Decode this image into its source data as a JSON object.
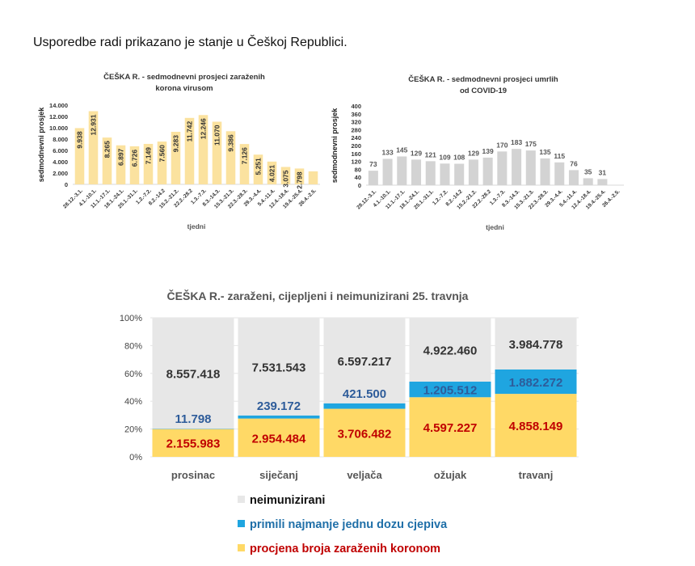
{
  "intro_text": "Usporedbe radi prikazano je stanje u Češkoj Republici.",
  "chart_data": [
    {
      "id": "cases",
      "type": "bar",
      "title_line1": "ČEŠKA R. - sedmodnevni prosjeci zaraženih",
      "title_line2": "korona virusom",
      "xlabel": "tjedni",
      "ylabel": "sedmodnevni prosjek",
      "ylim": [
        0,
        14000
      ],
      "yticks": [
        0,
        2000,
        4000,
        6000,
        8000,
        10000,
        12000,
        14000
      ],
      "ytick_labels": [
        "0",
        "2.000",
        "4.000",
        "6.000",
        "8.000",
        "10.000",
        "12.000",
        "14.000"
      ],
      "bar_color": "#FBE29F",
      "categories": [
        "28.12.-3.1.",
        "4.1.-10.1.",
        "11.1.-17.1.",
        "18.1.-24.1.",
        "25.1.-31.1.",
        "1.2.-7.2.",
        "8.2.-14.2",
        "15.2.-21.2.",
        "22.2.-28.2",
        "1.3.-7.3.",
        "8.3.-14.3.",
        "15.3.-21.3.",
        "22.3.-28.3.",
        "29.3.-4.4.",
        "5.4.-11.4.",
        "12.4.-18.4.",
        "19.4.-25.4.",
        "26.4.-2.5."
      ],
      "values": [
        9938,
        12931,
        8265,
        6897,
        6726,
        7149,
        7560,
        9283,
        11742,
        12246,
        11070,
        9386,
        7126,
        5251,
        4021,
        3075,
        2798,
        2300
      ],
      "data_labels": [
        "9.938",
        "12.931",
        "8.265",
        "6.897",
        "6.726",
        "7.149",
        "7.560",
        "9.283",
        "11.742",
        "12.246",
        "11.070",
        "9.386",
        "7.126",
        "5.251",
        "4.021",
        "3.075",
        "2.798",
        ""
      ],
      "grid": false
    },
    {
      "id": "deaths",
      "type": "bar",
      "title_line1": "ČEŠKA R. - sedmodnevni prosjeci umrlih",
      "title_line2": "od COVID-19",
      "xlabel": "tjedni",
      "ylabel": "sedmodnevni prosjek",
      "ylim": [
        0,
        400
      ],
      "yticks": [
        0,
        40,
        80,
        120,
        160,
        200,
        240,
        280,
        320,
        360,
        400
      ],
      "ytick_labels": [
        "0",
        "40",
        "80",
        "120",
        "160",
        "200",
        "240",
        "280",
        "320",
        "360",
        "400"
      ],
      "bar_color": "#D3D3D3",
      "categories": [
        "28.12.-3.1.",
        "4.1.-10.1.",
        "11.1.-17.1.",
        "18.1.-24.1.",
        "25.1.-31.1.",
        "1.2.-7.2.",
        "8.2.-14.2",
        "15.2.-21.2.",
        "22.2.-28.2",
        "1.3.-7.3.",
        "8.3.-14.3.",
        "15.3.-21.3.",
        "22.3.-28.3.",
        "29.3.-4.4.",
        "5.4.-11.4.",
        "12.4.-18.4.",
        "19.4.-25.4.",
        "26.4.-2.5."
      ],
      "values": [
        73,
        133,
        145,
        129,
        121,
        109,
        108,
        129,
        139,
        170,
        183,
        175,
        135,
        115,
        76,
        35,
        31,
        null
      ],
      "data_labels": [
        "73",
        "133",
        "145",
        "129",
        "121",
        "109",
        "108",
        "129",
        "139",
        "170",
        "183",
        "175",
        "135",
        "115",
        "76",
        "35",
        "31",
        ""
      ],
      "grid": false
    },
    {
      "id": "immunity",
      "type": "bar",
      "stacked": "percent",
      "title": "ČEŠKA R.- zaraženi, cijepljeni i neimunizirani 25. travnja",
      "ylim": [
        0,
        100
      ],
      "yticks": [
        0,
        20,
        40,
        60,
        80,
        100
      ],
      "ytick_labels": [
        "0%",
        "20%",
        "40%",
        "60%",
        "80%",
        "100%"
      ],
      "categories": [
        "prosinac",
        "siječanj",
        "veljača",
        "ožujak",
        "travanj"
      ],
      "series": [
        {
          "name": "procjena broja zaraženih koronom",
          "color": "#FFD966",
          "label_color": "#C00000",
          "values": [
            2155983,
            2954484,
            3706482,
            4597227,
            4858149
          ],
          "labels": [
            "2.155.983",
            "2.954.484",
            "3.706.482",
            "4.597.227",
            "4.858.149"
          ]
        },
        {
          "name": "primili najmanje jednu dozu cjepiva",
          "color": "#1FA5E0",
          "label_color": "#2E5C9A",
          "values": [
            11798,
            239172,
            421500,
            1205512,
            1882272
          ],
          "labels": [
            "11.798",
            "239.172",
            "421.500",
            "1.205.512",
            "1.882.272"
          ]
        },
        {
          "name": "neimunizirani",
          "color": "#E7E7E7",
          "label_color": "#333333",
          "values": [
            8557418,
            7531543,
            6597217,
            4922460,
            3984778
          ],
          "labels": [
            "8.557.418",
            "7.531.543",
            "6.597.217",
            "4.922.460",
            "3.984.778"
          ]
        }
      ],
      "legend": [
        {
          "label": "neimunizirani",
          "color": "#E7E7E7",
          "text_color": "#111111"
        },
        {
          "label": "primili najmanje jednu dozu cjepiva",
          "color": "#1FA5E0",
          "text_color": "#1F6FA8"
        },
        {
          "label": "procjena broja zaraženih koronom",
          "color": "#FFD966",
          "text_color": "#C00000"
        }
      ],
      "legend_position": "bottom",
      "grid": true
    }
  ]
}
